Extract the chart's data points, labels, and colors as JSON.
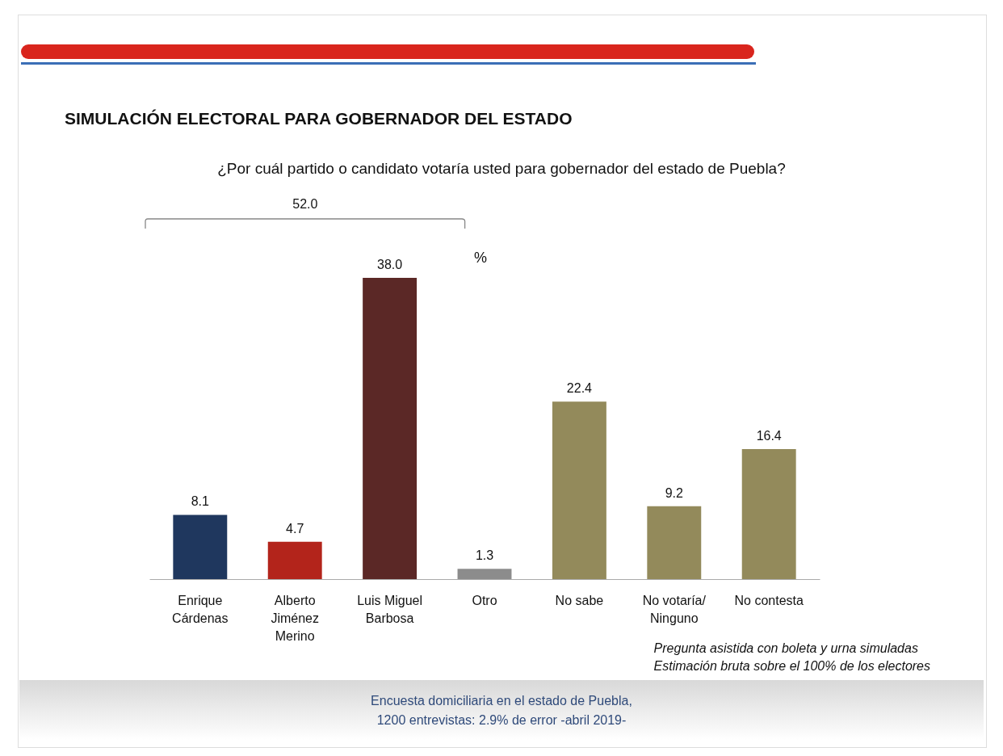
{
  "chart_data": {
    "type": "bar",
    "title": "SIMULACIÓN ELECTORAL PARA GOBERNADOR DEL ESTADO",
    "subtitle": "¿Por cuál partido o candidato votaría usted para gobernador del estado de Puebla?",
    "categories": [
      "Enrique Cárdenas",
      "Alberto Jiménez Merino",
      "Luis Miguel Barbosa",
      "Otro",
      "No sabe",
      "No votaría/ Ninguno",
      "No contesta"
    ],
    "values": [
      8.1,
      4.7,
      38.0,
      1.3,
      22.4,
      9.2,
      16.4
    ],
    "colors": [
      "#1f375e",
      "#b3241b",
      "#5b2826",
      "#8c8c8c",
      "#938a5b",
      "#938a5b",
      "#938a5b"
    ],
    "value_labels": [
      "8.1",
      "4.7",
      "38.0",
      "1.3",
      "22.4",
      "9.2",
      "16.4"
    ],
    "annotations": [
      "52.0",
      "%",
      "Pregunta asistida con boleta y urna simuladas",
      "Estimación bruta sobre el 100% de los electores",
      "Encuesta domiciliaria en el estado de Puebla,",
      "1200 entrevistas: 2.9% de error -abril 2019-"
    ]
  }
}
